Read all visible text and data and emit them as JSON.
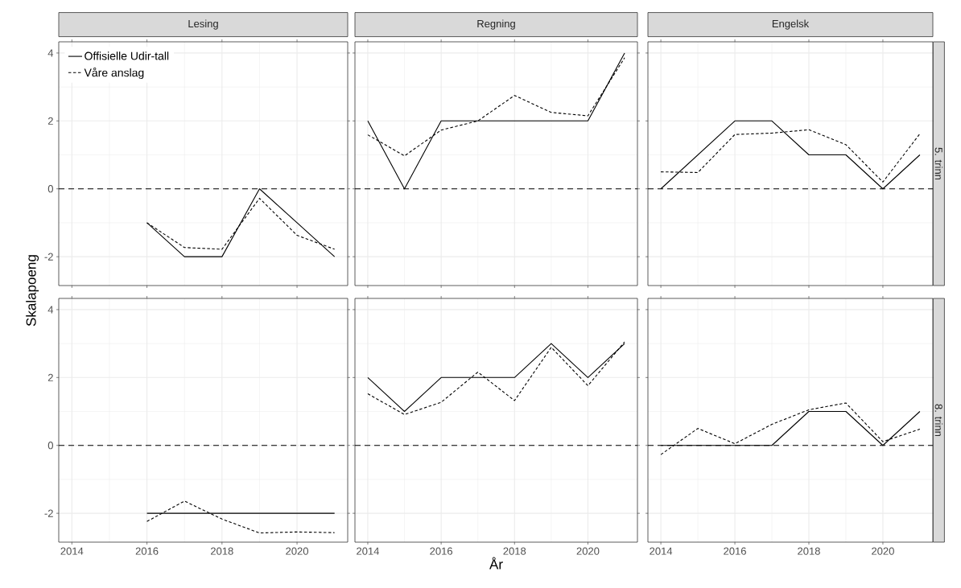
{
  "chart_data": [
    {
      "type": "line",
      "title": "Lesing",
      "ylabel": "Skalapoeng",
      "legend": "top left",
      "tick_labels": "y",
      "grid": true,
      "xlim": [
        2013.65,
        2021.35
      ],
      "ylim": [
        -2.85,
        4.33
      ],
      "xticks": [
        2014,
        2016,
        2018,
        2020
      ],
      "yticks": [
        -2,
        0,
        2,
        4
      ],
      "ref_lines": [
        {
          "axis": "y",
          "value": 0,
          "line_style": "dashed",
          "color": "#000000"
        }
      ],
      "series": [
        {
          "name": "Offisielle Udir-tall",
          "color": "#000000",
          "line_style": "solid",
          "x": [
            2016,
            2017,
            2018,
            2019,
            2020,
            2021
          ],
          "values": [
            -1,
            -2,
            -2,
            0,
            -1,
            -2
          ]
        },
        {
          "name": "Våre anslag",
          "color": "#000000",
          "line_style": "dashed",
          "x": [
            2016,
            2017,
            2018,
            2019,
            2020,
            2021
          ],
          "values": [
            -1,
            -1.73,
            -1.78,
            -0.28,
            -1.37,
            -1.78
          ]
        }
      ]
    },
    {
      "type": "line",
      "title": "Regning",
      "tick_labels": false,
      "grid": true,
      "xlim": [
        2013.65,
        2021.35
      ],
      "ylim": [
        -2.85,
        4.33
      ],
      "xticks": [
        2014,
        2016,
        2018,
        2020
      ],
      "yticks": [
        -2,
        0,
        2,
        4
      ],
      "ref_lines": [
        {
          "axis": "y",
          "value": 0,
          "line_style": "dashed",
          "color": "#000000"
        }
      ],
      "series": [
        {
          "color": "#000000",
          "line_style": "solid",
          "x": [
            2014,
            2015,
            2016,
            2017,
            2018,
            2019,
            2020,
            2021
          ],
          "values": [
            2,
            0,
            2,
            2,
            2,
            2,
            2,
            4
          ]
        },
        {
          "color": "#000000",
          "line_style": "dashed",
          "x": [
            2014,
            2015,
            2016,
            2017,
            2018,
            2019,
            2020,
            2021
          ],
          "values": [
            1.59,
            0.97,
            1.73,
            2.0,
            2.75,
            2.25,
            2.15,
            3.86
          ]
        }
      ]
    },
    {
      "type": "line",
      "title": "Engelsk",
      "y2label": "5. trinn",
      "tick_labels": false,
      "grid": true,
      "xlim": [
        2013.65,
        2021.35
      ],
      "ylim": [
        -2.85,
        4.33
      ],
      "xticks": [
        2014,
        2016,
        2018,
        2020
      ],
      "yticks": [
        -2,
        0,
        2,
        4
      ],
      "ref_lines": [
        {
          "axis": "y",
          "value": 0,
          "line_style": "dashed",
          "color": "#000000"
        }
      ],
      "series": [
        {
          "color": "#000000",
          "line_style": "solid",
          "x": [
            2014,
            2015,
            2016,
            2017,
            2018,
            2019,
            2020,
            2021
          ],
          "values": [
            0,
            1,
            2,
            2,
            1,
            1,
            0,
            1
          ]
        },
        {
          "color": "#000000",
          "line_style": "dashed",
          "x": [
            2014,
            2015,
            2016,
            2017,
            2018,
            2019,
            2020,
            2021
          ],
          "values": [
            0.5,
            0.48,
            1.6,
            1.64,
            1.74,
            1.3,
            0.2,
            1.62
          ]
        }
      ]
    },
    {
      "type": "line",
      "grid": true,
      "xlim": [
        2013.65,
        2021.35
      ],
      "ylim": [
        -2.85,
        4.33
      ],
      "xticks": [
        2014,
        2016,
        2018,
        2020
      ],
      "yticks": [
        -2,
        0,
        2,
        4
      ],
      "ref_lines": [
        {
          "axis": "y",
          "value": 0,
          "line_style": "dashed",
          "color": "#000000"
        }
      ],
      "series": [
        {
          "color": "#000000",
          "line_style": "solid",
          "x": [
            2016,
            2017,
            2018,
            2019,
            2020,
            2021
          ],
          "values": [
            -2,
            -2,
            -2,
            -2,
            -2,
            -2
          ]
        },
        {
          "color": "#000000",
          "line_style": "dashed",
          "x": [
            2016,
            2017,
            2018,
            2019,
            2020,
            2021
          ],
          "values": [
            -2.24,
            -1.64,
            -2.17,
            -2.58,
            -2.55,
            -2.57
          ]
        }
      ]
    },
    {
      "type": "line",
      "xlabel": "År",
      "tick_labels": "x",
      "grid": true,
      "xlim": [
        2013.65,
        2021.35
      ],
      "ylim": [
        -2.85,
        4.33
      ],
      "xticks": [
        2014,
        2016,
        2018,
        2020
      ],
      "yticks": [
        -2,
        0,
        2,
        4
      ],
      "ref_lines": [
        {
          "axis": "y",
          "value": 0,
          "line_style": "dashed",
          "color": "#000000"
        }
      ],
      "series": [
        {
          "color": "#000000",
          "line_style": "solid",
          "x": [
            2014,
            2015,
            2016,
            2017,
            2018,
            2019,
            2020,
            2021
          ],
          "values": [
            2,
            1,
            2,
            2,
            2,
            3,
            2,
            3
          ]
        },
        {
          "color": "#000000",
          "line_style": "dashed",
          "x": [
            2014,
            2015,
            2016,
            2017,
            2018,
            2019,
            2020,
            2021
          ],
          "values": [
            1.52,
            0.91,
            1.27,
            2.16,
            1.32,
            2.89,
            1.76,
            3.05
          ]
        }
      ]
    },
    {
      "type": "line",
      "y2label": "8. trinn",
      "tick_labels": "x",
      "grid": true,
      "xlim": [
        2013.65,
        2021.35
      ],
      "ylim": [
        -2.85,
        4.33
      ],
      "xticks": [
        2014,
        2016,
        2018,
        2020
      ],
      "yticks": [
        -2,
        0,
        2,
        4
      ],
      "ref_lines": [
        {
          "axis": "y",
          "value": 0,
          "line_style": "dashed",
          "color": "#000000"
        }
      ],
      "series": [
        {
          "color": "#000000",
          "line_style": "solid",
          "x": [
            2014,
            2015,
            2016,
            2017,
            2018,
            2019,
            2020,
            2021
          ],
          "values": [
            0,
            0,
            0,
            0,
            1,
            1,
            0,
            1
          ]
        },
        {
          "color": "#000000",
          "line_style": "dashed",
          "x": [
            2014,
            2015,
            2016,
            2017,
            2018,
            2019,
            2020,
            2021
          ],
          "values": [
            -0.27,
            0.5,
            0.05,
            0.62,
            1.05,
            1.25,
            0.11,
            0.48
          ]
        }
      ]
    }
  ]
}
